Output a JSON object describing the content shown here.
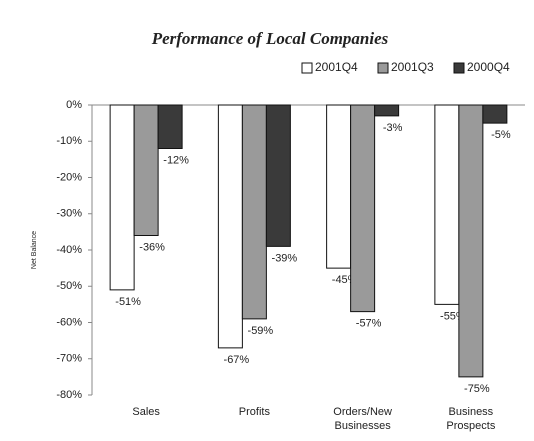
{
  "chart_data": {
    "type": "bar",
    "title": "Performance of Local Companies",
    "y_label": "Net Balance",
    "categories": [
      "Sales",
      "Profits",
      "Orders/New Businesses",
      "Business Prospects"
    ],
    "series": [
      {
        "name": "2001Q4",
        "color": "#ffffff",
        "values": [
          -51,
          -67,
          -45,
          -55
        ],
        "value_labels": [
          "-51%",
          "-67%",
          "-45%",
          "-55%"
        ]
      },
      {
        "name": "2001Q3",
        "color": "#9a9a9a",
        "values": [
          -36,
          -59,
          -57,
          -75
        ],
        "value_labels": [
          "-36%",
          "-59%",
          "-57%",
          "-75%"
        ]
      },
      {
        "name": "2000Q4",
        "color": "#3a3a3a",
        "values": [
          -12,
          -39,
          -3,
          -5
        ],
        "value_labels": [
          "-12%",
          "-39%",
          "-3%",
          "-5%"
        ]
      }
    ],
    "ylim": [
      -80,
      0
    ],
    "yticks": [
      {
        "value": 0,
        "label": "0%"
      },
      {
        "value": -10,
        "label": "-10%"
      },
      {
        "value": -20,
        "label": "-20%"
      },
      {
        "value": -30,
        "label": "-30%"
      },
      {
        "value": -40,
        "label": "-40%"
      },
      {
        "value": -50,
        "label": "-50%"
      },
      {
        "value": -60,
        "label": "-60%"
      },
      {
        "value": -70,
        "label": "-70%"
      },
      {
        "value": -80,
        "label": "-80%"
      }
    ],
    "legend": "top-right"
  }
}
